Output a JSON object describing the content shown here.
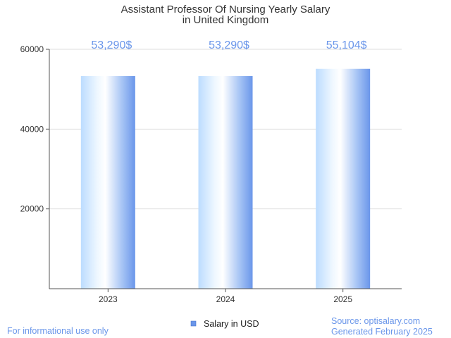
{
  "chart_data": {
    "type": "bar",
    "title": "Assistant Professor Of Nursing Yearly Salary",
    "subtitle": "in United Kingdom",
    "categories": [
      "2023",
      "2024",
      "2025"
    ],
    "series": [
      {
        "name": "Salary in USD",
        "values": [
          53290,
          53290,
          55104
        ],
        "labels": [
          "53,290$",
          "53,290$",
          "55,104$"
        ]
      }
    ],
    "ylim": [
      0,
      60000
    ],
    "yticks": [
      20000,
      40000,
      60000
    ],
    "ytick_labels": [
      "20000",
      "40000",
      "60000"
    ],
    "grid": true,
    "legend": "bottom-center"
  },
  "footer": {
    "left": "For informational use only",
    "source": "Source: optisalary.com",
    "generated": "Generated February 2025"
  },
  "colors": {
    "bar_light": "#e8f4ff",
    "bar_mid": "#ffffff",
    "bar_dark": "#6a96ea",
    "label": "#6a96ea",
    "grid": "#dddddd",
    "axis": "#555555",
    "legend_swatch": "#6a96ea"
  }
}
